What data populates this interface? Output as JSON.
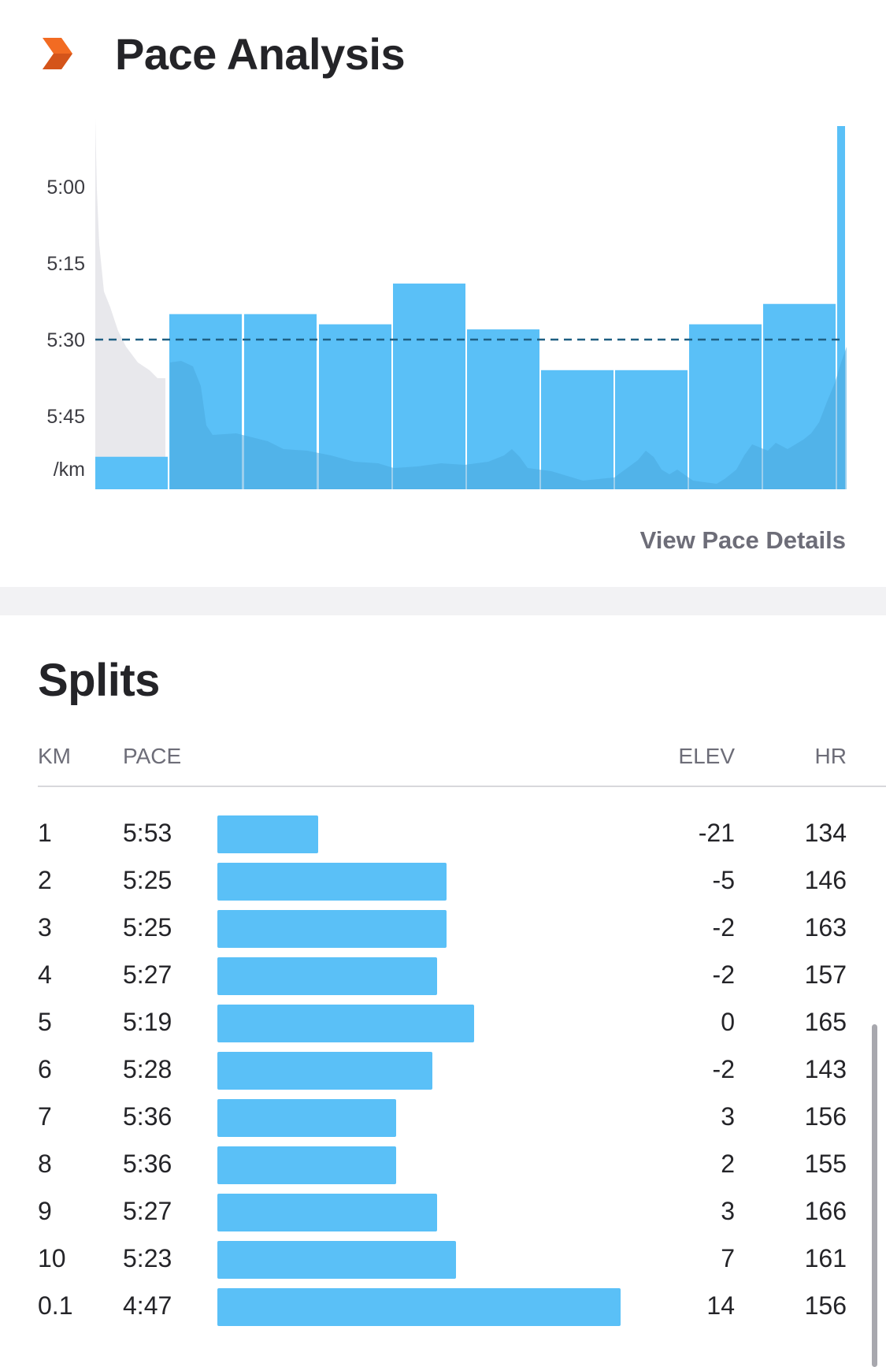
{
  "pace_analysis": {
    "title": "Pace Analysis",
    "icon": "strava-chevron-icon",
    "view_details_label": "View Pace Details",
    "y_axis_unit": "/km"
  },
  "chart_data": {
    "type": "bar",
    "categories": [
      "1",
      "2",
      "3",
      "4",
      "5",
      "6",
      "7",
      "8",
      "9",
      "10",
      "0.1"
    ],
    "values": [
      "5:53",
      "5:25",
      "5:25",
      "5:27",
      "5:19",
      "5:28",
      "5:36",
      "5:36",
      "5:27",
      "5:23",
      "4:47"
    ],
    "values_seconds": [
      353,
      325,
      325,
      327,
      319,
      328,
      336,
      336,
      327,
      323,
      287
    ],
    "average_pace": "5:30",
    "y_ticks": [
      "5:00",
      "5:15",
      "5:30",
      "5:45"
    ],
    "ylabel": "/km",
    "y_inverted": true,
    "bar_color": "#5ac0f7",
    "average_line_color": "#1f5f82",
    "elevation_fill_color": "#e8e8ec",
    "heart_rate_area_color": "#4aa8de"
  },
  "splits": {
    "title": "Splits",
    "columns": {
      "km": "KM",
      "pace": "PACE",
      "elev": "ELEV",
      "hr": "HR"
    },
    "rows": [
      {
        "km": "1",
        "pace": "5:53",
        "elev": "-21",
        "hr": "134",
        "pace_seconds": 353
      },
      {
        "km": "2",
        "pace": "5:25",
        "elev": "-5",
        "hr": "146",
        "pace_seconds": 325
      },
      {
        "km": "3",
        "pace": "5:25",
        "elev": "-2",
        "hr": "163",
        "pace_seconds": 325
      },
      {
        "km": "4",
        "pace": "5:27",
        "elev": "-2",
        "hr": "157",
        "pace_seconds": 327
      },
      {
        "km": "5",
        "pace": "5:19",
        "elev": "0",
        "hr": "165",
        "pace_seconds": 319
      },
      {
        "km": "6",
        "pace": "5:28",
        "elev": "-2",
        "hr": "143",
        "pace_seconds": 328
      },
      {
        "km": "7",
        "pace": "5:36",
        "elev": "3",
        "hr": "156",
        "pace_seconds": 336
      },
      {
        "km": "8",
        "pace": "5:36",
        "elev": "2",
        "hr": "155",
        "pace_seconds": 336
      },
      {
        "km": "9",
        "pace": "5:27",
        "elev": "3",
        "hr": "166",
        "pace_seconds": 327
      },
      {
        "km": "10",
        "pace": "5:23",
        "elev": "7",
        "hr": "161",
        "pace_seconds": 323
      },
      {
        "km": "0.1",
        "pace": "4:47",
        "elev": "14",
        "hr": "156",
        "pace_seconds": 287
      }
    ]
  },
  "colors": {
    "accent_orange": "#f26b22",
    "bar_blue": "#5ac0f7",
    "text_primary": "#242428",
    "text_secondary": "#6d6d78"
  }
}
